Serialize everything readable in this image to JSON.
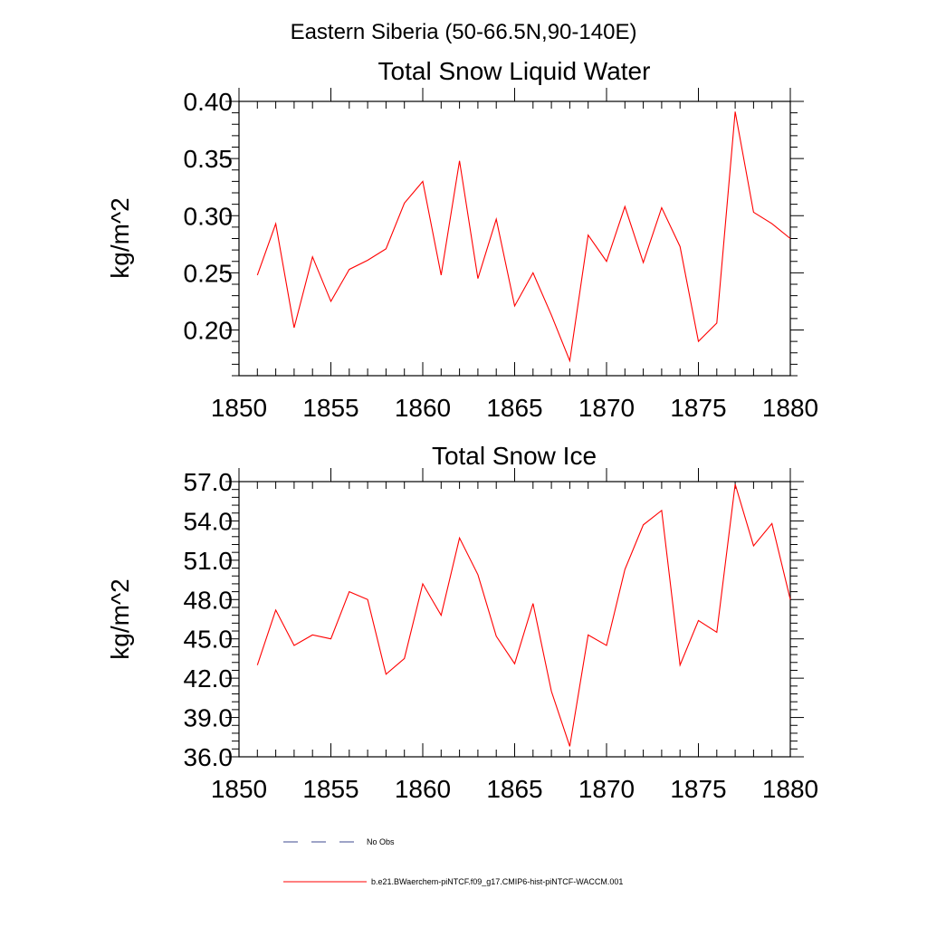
{
  "figure_title": "Eastern Siberia (50-66.5N,90-140E)",
  "colors": {
    "series": "#ff0000",
    "obs": "#3d4a8f",
    "axis": "#000000"
  },
  "chart_data": [
    {
      "type": "line",
      "title": "Total Snow Liquid Water",
      "xlabel": "",
      "ylabel": "kg/m^2",
      "xlim": [
        1850,
        1880
      ],
      "ylim": [
        0.16,
        0.4
      ],
      "x_ticks": [
        "1850",
        "1855",
        "1860",
        "1865",
        "1870",
        "1875",
        "1880"
      ],
      "y_ticks": [
        "0.20",
        "0.25",
        "0.30",
        "0.35",
        "0.40"
      ],
      "grid": false,
      "x": [
        1851,
        1852,
        1853,
        1854,
        1855,
        1856,
        1857,
        1858,
        1859,
        1860,
        1861,
        1862,
        1863,
        1864,
        1865,
        1866,
        1867,
        1868,
        1869,
        1870,
        1871,
        1872,
        1873,
        1874,
        1875,
        1876,
        1877,
        1878,
        1879,
        1880
      ],
      "series": [
        {
          "name": "b.e21.BWaerchem-piNTCF.f09_g17.CMIP6-hist-piNTCF-WACCM.001",
          "values": [
            0.248,
            0.293,
            0.202,
            0.264,
            0.225,
            0.253,
            0.261,
            0.271,
            0.311,
            0.33,
            0.248,
            0.348,
            0.245,
            0.297,
            0.221,
            0.25,
            0.213,
            0.173,
            0.283,
            0.26,
            0.308,
            0.259,
            0.307,
            0.273,
            0.19,
            0.206,
            0.391,
            0.303,
            0.293,
            0.28
          ]
        }
      ]
    },
    {
      "type": "line",
      "title": "Total Snow Ice",
      "xlabel": "",
      "ylabel": "kg/m^2",
      "xlim": [
        1850,
        1880
      ],
      "ylim": [
        36.0,
        57.0
      ],
      "x_ticks": [
        "1850",
        "1855",
        "1860",
        "1865",
        "1870",
        "1875",
        "1880"
      ],
      "y_ticks": [
        "36.0",
        "39.0",
        "42.0",
        "45.0",
        "48.0",
        "51.0",
        "54.0",
        "57.0"
      ],
      "grid": false,
      "x": [
        1851,
        1852,
        1853,
        1854,
        1855,
        1856,
        1857,
        1858,
        1859,
        1860,
        1861,
        1862,
        1863,
        1864,
        1865,
        1866,
        1867,
        1868,
        1869,
        1870,
        1871,
        1872,
        1873,
        1874,
        1875,
        1876,
        1877,
        1878,
        1879,
        1880
      ],
      "series": [
        {
          "name": "b.e21.BWaerchem-piNTCF.f09_g17.CMIP6-hist-piNTCF-WACCM.001",
          "values": [
            43.0,
            47.2,
            44.5,
            45.3,
            45.0,
            48.6,
            48.0,
            42.3,
            43.5,
            49.2,
            46.8,
            52.7,
            49.9,
            45.2,
            43.1,
            47.7,
            41.0,
            36.8,
            45.3,
            44.5,
            50.3,
            53.7,
            54.8,
            43.0,
            46.4,
            45.5,
            56.8,
            52.1,
            53.8,
            48.0
          ]
        }
      ]
    }
  ],
  "legend": {
    "obs_label": "No Obs",
    "series_label": "b.e21.BWaerchem-piNTCF.f09_g17.CMIP6-hist-piNTCF-WACCM.001"
  }
}
